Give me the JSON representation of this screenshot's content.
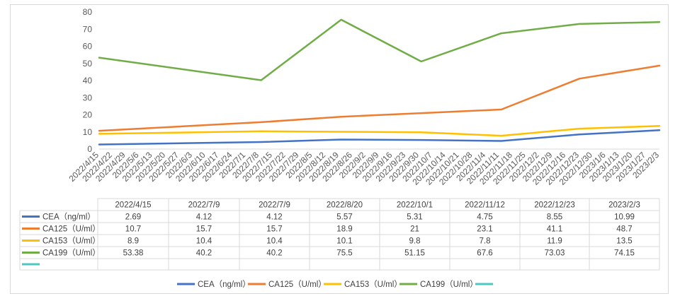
{
  "chart_data": {
    "type": "line",
    "x_dates": [
      "2022/4/15",
      "2022/7/9",
      "2022/7/9",
      "2022/8/20",
      "2022/10/1",
      "2022/11/12",
      "2022/12/23",
      "2023/2/3"
    ],
    "x_tick_labels": [
      "2022/4/15",
      "2022/4/22",
      "2022/4/29",
      "2022/5/6",
      "2022/5/13",
      "2022/5/20",
      "2022/5/27",
      "2022/6/3",
      "2022/6/10",
      "2022/6/17",
      "2022/6/24",
      "2022/7/1",
      "2022/7/8",
      "2022/7/15",
      "2022/7/22",
      "2022/7/29",
      "2022/8/5",
      "2022/8/12",
      "2022/8/19",
      "2022/8/26",
      "2022/9/2",
      "2022/9/9",
      "2022/9/16",
      "2022/9/23",
      "2022/9/30",
      "2022/10/7",
      "2022/10/14",
      "2022/10/21",
      "2022/10/28",
      "2022/11/4",
      "2022/11/11",
      "2022/11/18",
      "2022/11/25",
      "2022/12/2",
      "2022/12/9",
      "2022/12/16",
      "2022/12/23",
      "2022/12/30",
      "2023/1/6",
      "2023/1/13",
      "2023/1/20",
      "2023/1/27",
      "2023/2/3"
    ],
    "y_ticks": [
      0,
      10,
      20,
      30,
      40,
      50,
      60,
      70,
      80
    ],
    "ylim": [
      0,
      80
    ],
    "grid": false,
    "legend_position": "bottom",
    "series": [
      {
        "name": "CEA（ng/ml）",
        "color": "#4472c4",
        "values": [
          2.69,
          4.12,
          4.12,
          5.57,
          5.31,
          4.75,
          8.55,
          10.99
        ]
      },
      {
        "name": "CA125（U/ml）",
        "color": "#ed7d31",
        "values": [
          10.7,
          15.7,
          15.7,
          18.9,
          21,
          23.1,
          41.1,
          48.7
        ]
      },
      {
        "name": "CA153（U/ml）",
        "color": "#ffc000",
        "values": [
          8.9,
          10.4,
          10.4,
          10.1,
          9.8,
          7.8,
          11.9,
          13.5
        ]
      },
      {
        "name": "CA199（U/ml）",
        "color": "#70ad47",
        "values": [
          53.38,
          40.2,
          40.2,
          75.5,
          51.15,
          67.6,
          73.03,
          74.15
        ]
      },
      {
        "name": "",
        "color": "#4bc8c0",
        "values": []
      }
    ]
  }
}
